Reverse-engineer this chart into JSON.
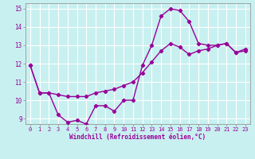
{
  "xlabel": "Windchill (Refroidissement éolien,°C)",
  "bg_color": "#c8f0f0",
  "grid_color": "#aadddd",
  "line_color": "#990099",
  "spine_color": "#888888",
  "xlim": [
    -0.5,
    23.5
  ],
  "ylim": [
    8.7,
    15.3
  ],
  "xticks": [
    0,
    1,
    2,
    3,
    4,
    5,
    6,
    7,
    8,
    9,
    10,
    11,
    12,
    13,
    14,
    15,
    16,
    17,
    18,
    19,
    20,
    21,
    22,
    23
  ],
  "yticks": [
    9,
    10,
    11,
    12,
    13,
    14,
    15
  ],
  "line1_x": [
    0,
    1,
    2,
    3,
    4,
    5,
    6,
    7,
    8,
    9,
    10,
    11,
    12,
    13,
    14,
    15,
    16,
    17,
    18,
    19,
    20,
    21,
    22,
    23
  ],
  "line1_y": [
    11.9,
    10.4,
    10.4,
    9.2,
    8.8,
    8.9,
    8.7,
    9.7,
    9.7,
    9.4,
    10.0,
    10.0,
    11.9,
    13.0,
    14.6,
    15.0,
    14.9,
    14.3,
    13.1,
    13.0,
    13.0,
    13.1,
    12.6,
    12.7
  ],
  "line2_x": [
    0,
    1,
    2,
    3,
    4,
    5,
    6,
    7,
    8,
    9,
    10,
    11,
    12,
    13,
    14,
    15,
    16,
    17,
    18,
    19,
    20,
    21,
    22,
    23
  ],
  "line2_y": [
    11.9,
    10.4,
    10.4,
    10.3,
    10.2,
    10.2,
    10.2,
    10.4,
    10.5,
    10.6,
    10.8,
    11.0,
    11.5,
    12.1,
    12.7,
    13.1,
    12.9,
    12.5,
    12.7,
    12.8,
    13.0,
    13.1,
    12.6,
    12.8
  ]
}
